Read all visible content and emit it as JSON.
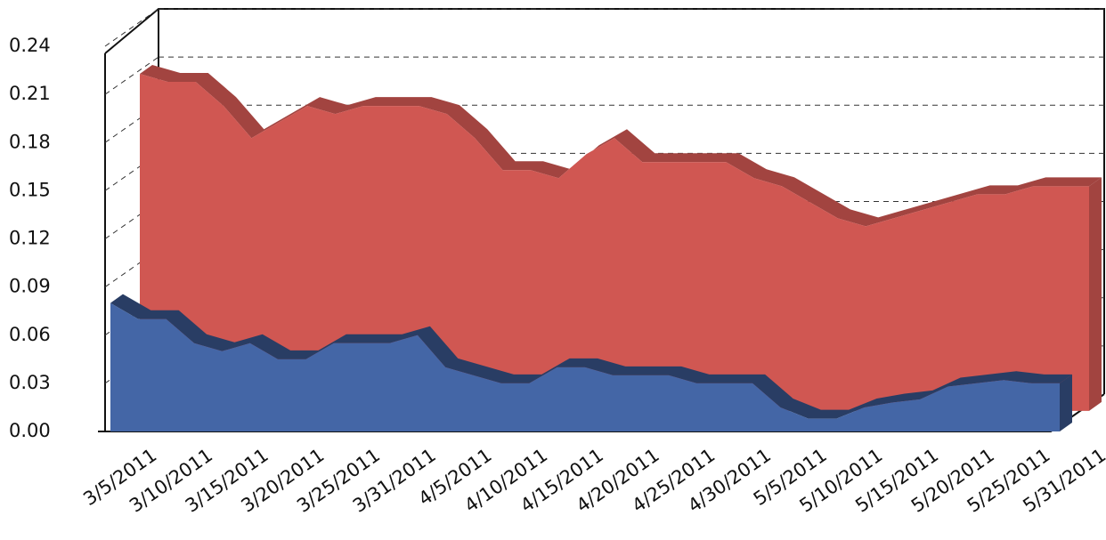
{
  "chart_data": {
    "type": "area",
    "categories": [
      "3/5/2011",
      null,
      "3/10/2011",
      null,
      "3/15/2011",
      null,
      "3/20/2011",
      null,
      "3/25/2011",
      null,
      "3/31/2011",
      null,
      "4/5/2011",
      null,
      "4/10/2011",
      null,
      "4/15/2011",
      null,
      "4/20/2011",
      null,
      "4/25/2011",
      null,
      "4/30/2011",
      null,
      "5/5/2011",
      null,
      "5/10/2011",
      null,
      "5/15/2011",
      null,
      "5/20/2011",
      null,
      "5/25/2011",
      null,
      "5/31/2011"
    ],
    "series": [
      {
        "color": "#d05752",
        "values": [
          0.21,
          0.205,
          0.205,
          0.19,
          0.17,
          0.18,
          0.19,
          0.185,
          0.19,
          0.19,
          0.19,
          0.185,
          0.17,
          0.15,
          0.15,
          0.145,
          0.16,
          0.17,
          0.155,
          0.155,
          0.155,
          0.155,
          0.145,
          0.14,
          0.13,
          0.12,
          0.115,
          0.12,
          0.125,
          0.13,
          0.135,
          0.135,
          0.14,
          0.14,
          0.14
        ]
      },
      {
        "color": "#4466a6",
        "values": [
          0.08,
          0.07,
          0.07,
          0.055,
          0.05,
          0.055,
          0.045,
          0.045,
          0.055,
          0.055,
          0.055,
          0.06,
          0.04,
          0.035,
          0.03,
          0.03,
          0.04,
          0.04,
          0.035,
          0.035,
          0.035,
          0.03,
          0.03,
          0.03,
          0.015,
          0.008,
          0.008,
          0.015,
          0.018,
          0.02,
          0.028,
          0.03,
          0.032,
          0.03,
          0.03
        ]
      }
    ],
    "ylim": [
      0,
      0.24
    ],
    "yticks": [
      {
        "value": 0,
        "label": "0.00"
      },
      0.03,
      0.06,
      0.09,
      0.12,
      0.15,
      0.18,
      0.21,
      0.24
    ],
    "grid": true
  }
}
